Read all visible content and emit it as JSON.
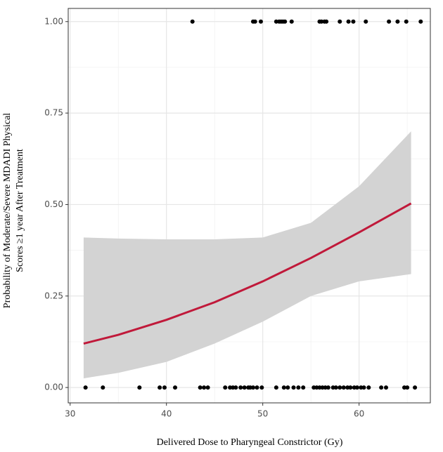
{
  "chart_data": {
    "type": "logistic",
    "xlabel": "Delivered Dose to Pharyngeal Constrictor (Gy)",
    "ylabel": [
      "Probability of Moderate/Severe MDADI Physical",
      "Scores ≥1 year After Treatment"
    ],
    "xlim": [
      29.8,
      67.4
    ],
    "ylim": [
      -0.042,
      1.036
    ],
    "xticks": [
      30,
      40,
      50,
      60
    ],
    "yticks": [
      {
        "value": 0,
        "label": "0.00"
      },
      {
        "value": 0.25,
        "label": "0.25"
      },
      {
        "value": 0.5,
        "label": "0.50"
      },
      {
        "value": 0.75,
        "label": "0.75"
      },
      {
        "value": 1,
        "label": "1.00"
      }
    ],
    "x_minor_grid": [
      35,
      45,
      55,
      65
    ],
    "y_minor_grid": [
      0.125,
      0.375,
      0.625,
      0.875
    ],
    "grid": true,
    "points": {
      "color": "#000000",
      "x": [
        42.7,
        49.0,
        49.2,
        49.8,
        51.4,
        51.7,
        51.9,
        52.1,
        52.3,
        53.0,
        55.9,
        56.1,
        56.4,
        56.6,
        58.0,
        58.9,
        59.4,
        60.7,
        63.1,
        64.0,
        64.9,
        66.4,
        31.6,
        33.4,
        37.2,
        39.3,
        39.8,
        40.9,
        43.5,
        43.9,
        44.3,
        46.1,
        46.6,
        46.9,
        47.2,
        47.7,
        48.1,
        48.5,
        48.7,
        49.0,
        49.4,
        49.9,
        51.4,
        52.2,
        52.6,
        53.2,
        53.7,
        54.2,
        55.3,
        55.6,
        55.9,
        56.2,
        56.5,
        56.8,
        57.3,
        57.6,
        58.0,
        58.4,
        58.8,
        59.1,
        59.5,
        59.8,
        60.2,
        60.5,
        61.0,
        62.3,
        62.8,
        64.7,
        65.0,
        65.8
      ],
      "y": [
        1,
        1,
        1,
        1,
        1,
        1,
        1,
        1,
        1,
        1,
        1,
        1,
        1,
        1,
        1,
        1,
        1,
        1,
        1,
        1,
        1,
        1,
        0,
        0,
        0,
        0,
        0,
        0,
        0,
        0,
        0,
        0,
        0,
        0,
        0,
        0,
        0,
        0,
        0,
        0,
        0,
        0,
        0,
        0,
        0,
        0,
        0,
        0,
        0,
        0,
        0,
        0,
        0,
        0,
        0,
        0,
        0,
        0,
        0,
        0,
        0,
        0,
        0,
        0,
        0,
        0,
        0,
        0,
        0,
        0
      ]
    },
    "fit": {
      "color": "#c0193a",
      "band_color": "#d3d3d3",
      "x": [
        31.4,
        35,
        40,
        45,
        50,
        55,
        60,
        65.4
      ],
      "y": [
        0.12,
        0.144,
        0.185,
        0.233,
        0.29,
        0.354,
        0.424,
        0.503
      ],
      "lower": [
        0.025,
        0.04,
        0.07,
        0.12,
        0.18,
        0.25,
        0.29,
        0.31
      ],
      "upper": [
        0.41,
        0.407,
        0.405,
        0.405,
        0.41,
        0.45,
        0.55,
        0.7
      ]
    }
  }
}
